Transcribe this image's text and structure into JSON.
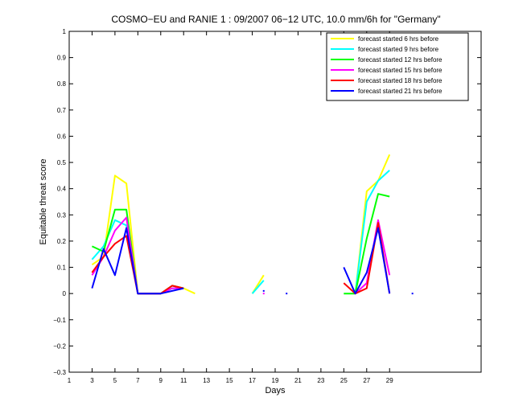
{
  "chart_data": {
    "type": "line",
    "title": "COSMO−EU and RANIE 1 : 09/2007 06−12 UTC, 10.0 mm/6h for \"Germany\"",
    "xlabel": "Days",
    "ylabel": "Equitable threat score",
    "xlim": [
      1,
      37
    ],
    "ylim": [
      -0.3,
      1
    ],
    "xticks": [
      1,
      3,
      5,
      7,
      9,
      11,
      13,
      15,
      17,
      19,
      21,
      23,
      25,
      27,
      29
    ],
    "xtick_labels": [
      "1",
      "3",
      "5",
      "7",
      "9",
      "11",
      "13",
      "15",
      "17",
      "19",
      "21",
      "23",
      "25",
      "27",
      "29"
    ],
    "yticks": [
      -0.3,
      -0.2,
      -0.1,
      0,
      0.1,
      0.2,
      0.3,
      0.4,
      0.5,
      0.6,
      0.7,
      0.8,
      0.9,
      1
    ],
    "ytick_labels": [
      "−0.3",
      "−0.2",
      "−0.1",
      "0",
      "0.1",
      "0.2",
      "0.3",
      "0.4",
      "0.5",
      "0.6",
      "0.7",
      "0.8",
      "0.9",
      "1"
    ],
    "grid": false,
    "legend_position": "top-right",
    "series": [
      {
        "name": "forecast started 6 hrs before",
        "color": "#ffff00",
        "segments": [
          [
            [
              3,
              0.11
            ],
            [
              4,
              0.14
            ],
            [
              5,
              0.45
            ],
            [
              6,
              0.42
            ],
            [
              7,
              0.0
            ],
            [
              8,
              0.0
            ],
            [
              9,
              0.0
            ],
            [
              10,
              0.03
            ],
            [
              11,
              0.02
            ],
            [
              12,
              0.0
            ]
          ],
          [
            [
              17,
              0.0
            ],
            [
              18,
              0.07
            ]
          ],
          [
            [
              26,
              0.0
            ],
            [
              27,
              0.39
            ],
            [
              28,
              0.43
            ],
            [
              29,
              0.53
            ]
          ]
        ]
      },
      {
        "name": "forecast started 9 hrs before",
        "color": "#00ffff",
        "segments": [
          [
            [
              3,
              0.13
            ],
            [
              4,
              0.18
            ],
            [
              5,
              0.28
            ],
            [
              6,
              0.26
            ],
            [
              7,
              0.0
            ],
            [
              8,
              0.0
            ],
            [
              9,
              0.0
            ],
            [
              10,
              0.02
            ],
            [
              11,
              0.02
            ]
          ],
          [
            [
              17,
              0.0
            ],
            [
              18,
              0.05
            ]
          ],
          [
            [
              26,
              0.0
            ],
            [
              27,
              0.35
            ],
            [
              28,
              0.43
            ],
            [
              29,
              0.47
            ]
          ]
        ]
      },
      {
        "name": "forecast started 12 hrs before",
        "color": "#00ff00",
        "segments": [
          [
            [
              3,
              0.18
            ],
            [
              4,
              0.16
            ],
            [
              5,
              0.32
            ],
            [
              6,
              0.32
            ],
            [
              7,
              0.0
            ],
            [
              8,
              0.0
            ],
            [
              9,
              0.0
            ],
            [
              10,
              0.03
            ],
            [
              11,
              0.02
            ]
          ],
          [
            [
              25,
              0.0
            ],
            [
              26,
              0.0
            ],
            [
              27,
              0.21
            ],
            [
              28,
              0.38
            ],
            [
              29,
              0.37
            ]
          ]
        ]
      },
      {
        "name": "forecast started 15 hrs before",
        "color": "#ff00ff",
        "segments": [
          [
            [
              3,
              0.07
            ],
            [
              4,
              0.14
            ],
            [
              5,
              0.24
            ],
            [
              6,
              0.29
            ],
            [
              7,
              0.0
            ],
            [
              8,
              0.0
            ],
            [
              9,
              0.0
            ],
            [
              10,
              0.02
            ],
            [
              11,
              0.02
            ]
          ],
          [
            [
              18,
              0.0
            ]
          ],
          [
            [
              26,
              0.0
            ],
            [
              27,
              0.04
            ],
            [
              28,
              0.28
            ],
            [
              29,
              0.07
            ]
          ]
        ]
      },
      {
        "name": "forecast started 18 hrs before",
        "color": "#ff0000",
        "segments": [
          [
            [
              3,
              0.08
            ],
            [
              4,
              0.14
            ],
            [
              5,
              0.19
            ],
            [
              6,
              0.22
            ],
            [
              7,
              0.0
            ],
            [
              8,
              0.0
            ],
            [
              9,
              0.0
            ],
            [
              10,
              0.03
            ],
            [
              11,
              0.02
            ]
          ],
          [
            [
              25,
              0.04
            ],
            [
              26,
              0.0
            ],
            [
              27,
              0.02
            ],
            [
              28,
              0.27
            ],
            [
              29,
              0.0
            ]
          ]
        ]
      },
      {
        "name": "forecast started 21 hrs before",
        "color": "#0000ff",
        "segments": [
          [
            [
              3,
              0.02
            ],
            [
              4,
              0.17
            ],
            [
              5,
              0.07
            ],
            [
              6,
              0.25
            ],
            [
              7,
              0.0
            ],
            [
              8,
              0.0
            ],
            [
              9,
              0.0
            ],
            [
              10,
              0.01
            ],
            [
              11,
              0.02
            ]
          ],
          [
            [
              18,
              0.01
            ]
          ],
          [
            [
              20,
              0.0
            ]
          ],
          [
            [
              25,
              0.1
            ],
            [
              26,
              0.0
            ],
            [
              27,
              0.08
            ],
            [
              28,
              0.25
            ],
            [
              29,
              0.0
            ]
          ],
          [
            [
              31,
              0.0
            ]
          ]
        ]
      }
    ]
  }
}
